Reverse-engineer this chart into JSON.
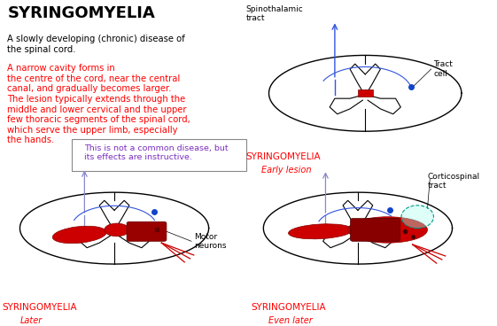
{
  "title": "SYRINGOMYELIA",
  "text_black1": "A slowly developing (chronic) disease of",
  "text_black2": "the spinal cord.",
  "text_red": "  A narrow cavity forms in\nthe centre of the cord, near the central\ncanal, and gradually becomes larger.\nThe lesion typically extends through the\nmiddle and lower cervical and the upper\nfew thoracic segments of the spinal cord,\nwhich serve the upper limb, especially\nthe hands.",
  "box_text": "This is not a common disease, but\nits effects are instructive.",
  "diagram1_title": "SYRINGOMYELIA",
  "diagram1_sub": "Early lesion",
  "diagram2_title": "SYRINGOMYELIA",
  "diagram2_sub": "Later",
  "diagram3_title": "SYRINGOMYELIA",
  "diagram3_sub": "Even later",
  "label_spinothalamic": "Spinothalamic\ntract",
  "label_tract_cell": "Tract\ncell",
  "label_motor_neurons": "Motor\nneurons",
  "label_corticospinal": "Corticospinal\ntract"
}
